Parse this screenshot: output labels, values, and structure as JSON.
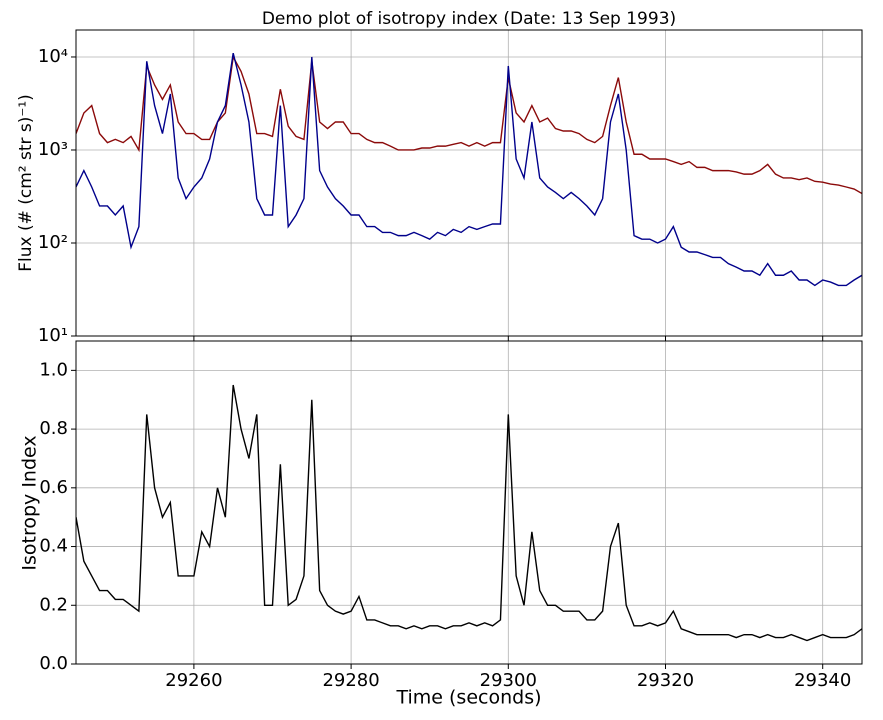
{
  "chart_data": [
    {
      "type": "line",
      "title": "Demo plot of isotropy index (Date: 13 Sep 1993)",
      "y_label": "Flux (# (cm² str s)⁻¹)",
      "yscale": "log",
      "grid": true,
      "xlim": [
        29245,
        29345
      ],
      "ylim": [
        10,
        19500
      ],
      "yticks": [
        {
          "value": 10,
          "label": "10¹"
        },
        {
          "value": 100,
          "label": "10²"
        },
        {
          "value": 1000,
          "label": "10³"
        },
        {
          "value": 10000,
          "label": "10⁴"
        }
      ],
      "x": [
        29245,
        29246,
        29247,
        29248,
        29249,
        29250,
        29251,
        29252,
        29253,
        29254,
        29255,
        29256,
        29257,
        29258,
        29259,
        29260,
        29261,
        29262,
        29263,
        29264,
        29265,
        29266,
        29267,
        29268,
        29269,
        29270,
        29271,
        29272,
        29273,
        29274,
        29275,
        29276,
        29277,
        29278,
        29279,
        29280,
        29281,
        29282,
        29283,
        29284,
        29285,
        29286,
        29287,
        29288,
        29289,
        29290,
        29291,
        29292,
        29293,
        29294,
        29295,
        29296,
        29297,
        29298,
        29299,
        29300,
        29301,
        29302,
        29303,
        29304,
        29305,
        29306,
        29307,
        29308,
        29309,
        29310,
        29311,
        29312,
        29313,
        29314,
        29315,
        29316,
        29317,
        29318,
        29319,
        29320,
        29321,
        29322,
        29323,
        29324,
        29325,
        29326,
        29327,
        29328,
        29329,
        29330,
        29331,
        29332,
        29333,
        29334,
        29335,
        29336,
        29337,
        29338,
        29339,
        29340,
        29341,
        29342,
        29343,
        29344,
        29345
      ],
      "series": [
        {
          "color": "#8b0a0a",
          "values": [
            1500,
            2500,
            3000,
            1500,
            1200,
            1300,
            1200,
            1400,
            1000,
            8000,
            5000,
            3500,
            5000,
            2000,
            1500,
            1500,
            1300,
            1300,
            2000,
            2500,
            10000,
            7000,
            4000,
            1500,
            1500,
            1400,
            4500,
            1800,
            1400,
            1300,
            9000,
            2000,
            1700,
            2000,
            2000,
            1500,
            1500,
            1300,
            1200,
            1200,
            1100,
            1000,
            1000,
            1000,
            1050,
            1050,
            1100,
            1100,
            1150,
            1200,
            1100,
            1200,
            1100,
            1200,
            1200,
            6000,
            2500,
            2000,
            3000,
            2000,
            2200,
            1700,
            1600,
            1600,
            1500,
            1300,
            1200,
            1400,
            3000,
            6000,
            2000,
            900,
            900,
            800,
            800,
            800,
            750,
            700,
            750,
            650,
            650,
            600,
            600,
            600,
            580,
            550,
            550,
            600,
            700,
            550,
            500,
            500,
            480,
            500,
            460,
            450,
            430,
            420,
            400,
            380,
            340
          ]
        },
        {
          "color": "#00008b",
          "values": [
            400,
            600,
            400,
            250,
            250,
            200,
            250,
            90,
            150,
            9000,
            3000,
            1500,
            4000,
            500,
            300,
            400,
            500,
            800,
            2000,
            3000,
            11000,
            5000,
            2000,
            300,
            200,
            200,
            3000,
            150,
            200,
            300,
            10000,
            600,
            400,
            300,
            250,
            200,
            200,
            150,
            150,
            130,
            130,
            120,
            120,
            130,
            120,
            110,
            130,
            120,
            140,
            130,
            150,
            140,
            150,
            160,
            160,
            8000,
            800,
            500,
            2000,
            500,
            400,
            350,
            300,
            350,
            300,
            250,
            200,
            300,
            2000,
            4000,
            1000,
            120,
            110,
            110,
            100,
            110,
            150,
            90,
            80,
            80,
            75,
            70,
            70,
            60,
            55,
            50,
            50,
            45,
            60,
            45,
            45,
            50,
            40,
            40,
            35,
            40,
            38,
            35,
            35,
            40,
            45
          ]
        }
      ]
    },
    {
      "type": "line",
      "x_label": "Time (seconds)",
      "y_label": "Isotropy Index",
      "grid": true,
      "xlim": [
        29245,
        29345
      ],
      "ylim": [
        0,
        1.1
      ],
      "xticks": [
        29260,
        29280,
        29300,
        29320,
        29340
      ],
      "yticks": [
        {
          "value": 0,
          "label": "0.0"
        },
        0.2,
        0.4,
        0.6,
        0.8,
        {
          "value": 1,
          "label": "1.0"
        }
      ],
      "x": [
        29245,
        29246,
        29247,
        29248,
        29249,
        29250,
        29251,
        29252,
        29253,
        29254,
        29255,
        29256,
        29257,
        29258,
        29259,
        29260,
        29261,
        29262,
        29263,
        29264,
        29265,
        29266,
        29267,
        29268,
        29269,
        29270,
        29271,
        29272,
        29273,
        29274,
        29275,
        29276,
        29277,
        29278,
        29279,
        29280,
        29281,
        29282,
        29283,
        29284,
        29285,
        29286,
        29287,
        29288,
        29289,
        29290,
        29291,
        29292,
        29293,
        29294,
        29295,
        29296,
        29297,
        29298,
        29299,
        29300,
        29301,
        29302,
        29303,
        29304,
        29305,
        29306,
        29307,
        29308,
        29309,
        29310,
        29311,
        29312,
        29313,
        29314,
        29315,
        29316,
        29317,
        29318,
        29319,
        29320,
        29321,
        29322,
        29323,
        29324,
        29325,
        29326,
        29327,
        29328,
        29329,
        29330,
        29331,
        29332,
        29333,
        29334,
        29335,
        29336,
        29337,
        29338,
        29339,
        29340,
        29341,
        29342,
        29343,
        29344,
        29345
      ],
      "series": [
        {
          "color": "#000000",
          "values": [
            0.5,
            0.35,
            0.3,
            0.25,
            0.25,
            0.22,
            0.22,
            0.2,
            0.18,
            0.85,
            0.6,
            0.5,
            0.55,
            0.3,
            0.3,
            0.3,
            0.45,
            0.4,
            0.6,
            0.5,
            0.95,
            0.8,
            0.7,
            0.85,
            0.2,
            0.2,
            0.68,
            0.2,
            0.22,
            0.3,
            0.9,
            0.25,
            0.2,
            0.18,
            0.17,
            0.18,
            0.23,
            0.15,
            0.15,
            0.14,
            0.13,
            0.13,
            0.12,
            0.13,
            0.12,
            0.13,
            0.13,
            0.12,
            0.13,
            0.13,
            0.14,
            0.13,
            0.14,
            0.13,
            0.15,
            0.85,
            0.3,
            0.2,
            0.45,
            0.25,
            0.2,
            0.2,
            0.18,
            0.18,
            0.18,
            0.15,
            0.15,
            0.18,
            0.4,
            0.48,
            0.2,
            0.13,
            0.13,
            0.14,
            0.13,
            0.14,
            0.18,
            0.12,
            0.11,
            0.1,
            0.1,
            0.1,
            0.1,
            0.1,
            0.09,
            0.1,
            0.1,
            0.09,
            0.1,
            0.09,
            0.09,
            0.1,
            0.09,
            0.08,
            0.09,
            0.1,
            0.09,
            0.09,
            0.09,
            0.1,
            0.12
          ]
        }
      ]
    }
  ]
}
